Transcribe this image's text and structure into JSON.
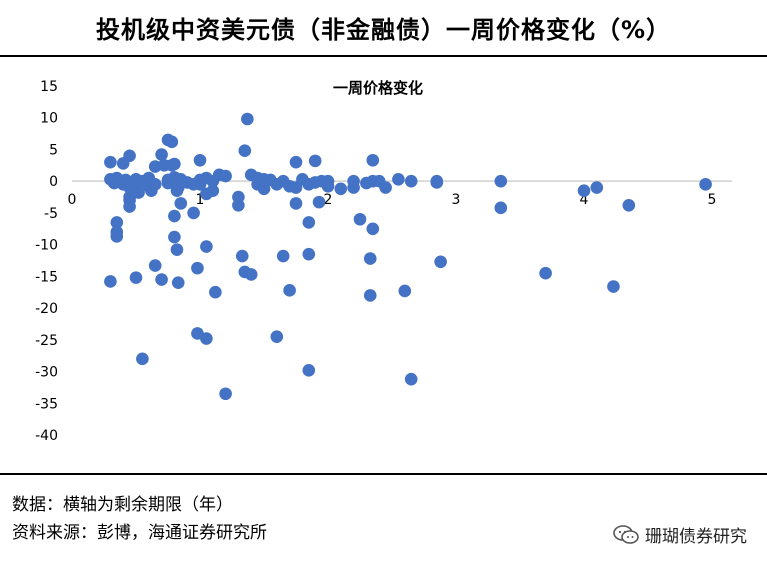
{
  "header": {
    "title": "投机级中资美元债（非金融债）一周价格变化（%）"
  },
  "footer": {
    "note": "数据：横轴为剩余期限（年）",
    "source": "资料来源：彭博，海通证券研究所"
  },
  "watermark": {
    "text": "珊瑚债券研究",
    "icon": "wechat-icon"
  },
  "chart_data": {
    "type": "scatter",
    "title": "一周价格变化",
    "xlabel": "",
    "ylabel": "",
    "xlim": [
      0,
      5
    ],
    "ylim": [
      -40,
      15
    ],
    "xticks": [
      0,
      1,
      2,
      3,
      4,
      5
    ],
    "yticks": [
      15,
      10,
      5,
      0,
      -5,
      -10,
      -15,
      -20,
      -25,
      -30,
      -35,
      -40
    ],
    "grid": false,
    "color": "#4472C4",
    "points": [
      [
        0.3,
        3.0
      ],
      [
        0.3,
        0.3
      ],
      [
        0.33,
        -0.3
      ],
      [
        0.35,
        0.5
      ],
      [
        0.4,
        2.8
      ],
      [
        0.4,
        -0.5
      ],
      [
        0.42,
        0.2
      ],
      [
        0.45,
        4.0
      ],
      [
        0.45,
        -1.0
      ],
      [
        0.45,
        -2.5
      ],
      [
        0.5,
        0.3
      ],
      [
        0.5,
        -1.5
      ],
      [
        0.52,
        -1.8
      ],
      [
        0.55,
        0.0
      ],
      [
        0.6,
        0.5
      ],
      [
        0.6,
        -0.8
      ],
      [
        0.62,
        -1.5
      ],
      [
        0.65,
        -0.5
      ],
      [
        0.65,
        2.3
      ],
      [
        0.7,
        4.2
      ],
      [
        0.72,
        2.5
      ],
      [
        0.75,
        0.2
      ],
      [
        0.75,
        -0.3
      ],
      [
        0.78,
        2.5
      ],
      [
        0.8,
        0.6
      ],
      [
        0.8,
        -0.3
      ],
      [
        0.83,
        -1.0
      ],
      [
        0.85,
        -0.3
      ],
      [
        0.9,
        -0.2
      ],
      [
        0.95,
        -0.5
      ],
      [
        0.75,
        6.5
      ],
      [
        0.8,
        0.0
      ],
      [
        0.85,
        0.3
      ],
      [
        1.0,
        0.2
      ],
      [
        1.0,
        -0.5
      ],
      [
        1.05,
        0.5
      ],
      [
        1.1,
        0.0
      ],
      [
        1.1,
        -1.5
      ],
      [
        1.15,
        1.0
      ],
      [
        1.2,
        0.8
      ],
      [
        1.0,
        3.3
      ],
      [
        1.05,
        -2.0
      ],
      [
        0.78,
        6.2
      ],
      [
        0.8,
        2.7
      ],
      [
        0.82,
        -1.5
      ],
      [
        0.85,
        -3.5
      ],
      [
        0.8,
        -5.5
      ],
      [
        0.95,
        -5.0
      ],
      [
        0.3,
        -15.8
      ],
      [
        0.35,
        -6.5
      ],
      [
        0.35,
        -8.0
      ],
      [
        0.35,
        -8.7
      ],
      [
        0.45,
        -3.0
      ],
      [
        0.45,
        -4.0
      ],
      [
        0.5,
        -15.2
      ],
      [
        0.55,
        -28.0
      ],
      [
        0.65,
        -13.3
      ],
      [
        0.7,
        -15.5
      ],
      [
        0.8,
        -8.8
      ],
      [
        0.82,
        -10.8
      ],
      [
        0.83,
        -16.0
      ],
      [
        0.98,
        -13.7
      ],
      [
        1.05,
        -10.3
      ],
      [
        1.12,
        -17.5
      ],
      [
        0.98,
        -24.0
      ],
      [
        1.05,
        -24.8
      ],
      [
        1.2,
        -33.5
      ],
      [
        1.3,
        -2.5
      ],
      [
        1.3,
        -3.8
      ],
      [
        1.33,
        -11.8
      ],
      [
        1.35,
        -14.3
      ],
      [
        1.4,
        -14.7
      ],
      [
        1.37,
        9.8
      ],
      [
        1.35,
        4.8
      ],
      [
        1.4,
        1.0
      ],
      [
        1.45,
        0.5
      ],
      [
        1.45,
        -0.5
      ],
      [
        1.5,
        0.3
      ],
      [
        1.5,
        -1.2
      ],
      [
        1.55,
        0.2
      ],
      [
        1.6,
        -0.5
      ],
      [
        1.65,
        0.0
      ],
      [
        1.7,
        -0.8
      ],
      [
        1.75,
        3.0
      ],
      [
        1.75,
        -1.0
      ],
      [
        1.8,
        0.3
      ],
      [
        1.85,
        -0.5
      ],
      [
        1.9,
        3.2
      ],
      [
        1.9,
        -0.2
      ],
      [
        1.95,
        0.0
      ],
      [
        2.0,
        0.0
      ],
      [
        2.0,
        -0.8
      ],
      [
        1.65,
        -11.8
      ],
      [
        1.7,
        -17.2
      ],
      [
        1.75,
        -3.5
      ],
      [
        1.6,
        -24.5
      ],
      [
        1.85,
        -6.5
      ],
      [
        1.85,
        -11.5
      ],
      [
        1.85,
        -29.8
      ],
      [
        1.93,
        -3.3
      ],
      [
        2.1,
        -1.2
      ],
      [
        2.2,
        0.0
      ],
      [
        2.2,
        -1.0
      ],
      [
        2.25,
        -6.0
      ],
      [
        2.3,
        -0.3
      ],
      [
        2.35,
        0.0
      ],
      [
        2.35,
        3.3
      ],
      [
        2.35,
        -7.5
      ],
      [
        2.33,
        -12.2
      ],
      [
        2.33,
        -18.0
      ],
      [
        2.4,
        0.0
      ],
      [
        2.45,
        -1.0
      ],
      [
        2.55,
        0.3
      ],
      [
        2.65,
        0.0
      ],
      [
        2.6,
        -17.3
      ],
      [
        2.65,
        -31.2
      ],
      [
        2.85,
        -0.2
      ],
      [
        2.85,
        0.0
      ],
      [
        2.88,
        -12.7
      ],
      [
        3.35,
        0.0
      ],
      [
        3.35,
        -4.2
      ],
      [
        3.7,
        -14.5
      ],
      [
        4.0,
        -1.5
      ],
      [
        4.1,
        -1.0
      ],
      [
        4.23,
        -16.6
      ],
      [
        4.35,
        -3.8
      ],
      [
        4.95,
        -0.5
      ]
    ]
  }
}
